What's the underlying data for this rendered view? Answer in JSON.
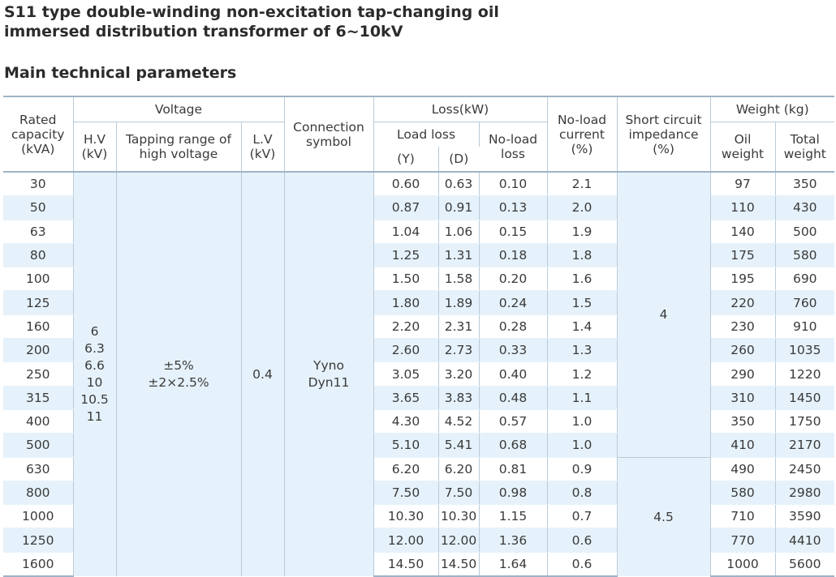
{
  "page": {
    "title_line1": "S11 type double-winding non-excitation tap-changing oil",
    "title_line2": "immersed distribution transformer of 6~10kV",
    "section": "Main technical parameters"
  },
  "headers": {
    "rated_capacity": [
      "Rated",
      "capacity",
      "(kVA)"
    ],
    "voltage": "Voltage",
    "hv": [
      "H.V",
      "(kV)"
    ],
    "tapping": [
      "Tapping range of",
      "high voltage"
    ],
    "lv": [
      "L.V",
      "(kV)"
    ],
    "connection": [
      "Connection",
      "symbol"
    ],
    "loss": "Loss(kW)",
    "load_loss": "Load loss",
    "load_loss_y": "(Y)",
    "load_loss_d": "(D)",
    "no_load_loss": [
      "No-load",
      "loss"
    ],
    "no_load_current": [
      "No-load",
      "current",
      "(%)"
    ],
    "short_circuit": [
      "Short circuit",
      "impedance",
      "(%)"
    ],
    "weight": "Weight (kg)",
    "oil_weight": [
      "Oil",
      "weight"
    ],
    "total_weight": [
      "Total",
      "weight"
    ]
  },
  "merged": {
    "hv_values": [
      "6",
      "6.3",
      "6.6",
      "10",
      "10.5",
      "11"
    ],
    "tapping_values": [
      "±5%",
      "±2×2.5%"
    ],
    "lv_value": "0.4",
    "connection_values": [
      "Yyno",
      "Dyn11"
    ],
    "impedance_a": "4",
    "impedance_b": "4.5"
  },
  "rows": [
    {
      "capacity": "30",
      "load_y": "0.60",
      "load_d": "0.63",
      "no_load_loss": "0.10",
      "no_load_current": "2.1",
      "oil": "97",
      "total": "350"
    },
    {
      "capacity": "50",
      "load_y": "0.87",
      "load_d": "0.91",
      "no_load_loss": "0.13",
      "no_load_current": "2.0",
      "oil": "110",
      "total": "430"
    },
    {
      "capacity": "63",
      "load_y": "1.04",
      "load_d": "1.06",
      "no_load_loss": "0.15",
      "no_load_current": "1.9",
      "oil": "140",
      "total": "500"
    },
    {
      "capacity": "80",
      "load_y": "1.25",
      "load_d": "1.31",
      "no_load_loss": "0.18",
      "no_load_current": "1.8",
      "oil": "175",
      "total": "580"
    },
    {
      "capacity": "100",
      "load_y": "1.50",
      "load_d": "1.58",
      "no_load_loss": "0.20",
      "no_load_current": "1.6",
      "oil": "195",
      "total": "690"
    },
    {
      "capacity": "125",
      "load_y": "1.80",
      "load_d": "1.89",
      "no_load_loss": "0.24",
      "no_load_current": "1.5",
      "oil": "220",
      "total": "760"
    },
    {
      "capacity": "160",
      "load_y": "2.20",
      "load_d": "2.31",
      "no_load_loss": "0.28",
      "no_load_current": "1.4",
      "oil": "230",
      "total": "910"
    },
    {
      "capacity": "200",
      "load_y": "2.60",
      "load_d": "2.73",
      "no_load_loss": "0.33",
      "no_load_current": "1.3",
      "oil": "260",
      "total": "1035"
    },
    {
      "capacity": "250",
      "load_y": "3.05",
      "load_d": "3.20",
      "no_load_loss": "0.40",
      "no_load_current": "1.2",
      "oil": "290",
      "total": "1220"
    },
    {
      "capacity": "315",
      "load_y": "3.65",
      "load_d": "3.83",
      "no_load_loss": "0.48",
      "no_load_current": "1.1",
      "oil": "310",
      "total": "1450"
    },
    {
      "capacity": "400",
      "load_y": "4.30",
      "load_d": "4.52",
      "no_load_loss": "0.57",
      "no_load_current": "1.0",
      "oil": "350",
      "total": "1750"
    },
    {
      "capacity": "500",
      "load_y": "5.10",
      "load_d": "5.41",
      "no_load_loss": "0.68",
      "no_load_current": "1.0",
      "oil": "410",
      "total": "2170"
    },
    {
      "capacity": "630",
      "load_y": "6.20",
      "load_d": "6.20",
      "no_load_loss": "0.81",
      "no_load_current": "0.9",
      "oil": "490",
      "total": "2450"
    },
    {
      "capacity": "800",
      "load_y": "7.50",
      "load_d": "7.50",
      "no_load_loss": "0.98",
      "no_load_current": "0.8",
      "oil": "580",
      "total": "2980"
    },
    {
      "capacity": "1000",
      "load_y": "10.30",
      "load_d": "10.30",
      "no_load_loss": "1.15",
      "no_load_current": "0.7",
      "oil": "710",
      "total": "3590"
    },
    {
      "capacity": "1250",
      "load_y": "12.00",
      "load_d": "12.00",
      "no_load_loss": "1.36",
      "no_load_current": "0.6",
      "oil": "770",
      "total": "4410"
    },
    {
      "capacity": "1600",
      "load_y": "14.50",
      "load_d": "14.50",
      "no_load_loss": "1.64",
      "no_load_current": "0.6",
      "oil": "1000",
      "total": "5600"
    }
  ],
  "colors": {
    "row_stripe": "#e6f2fb",
    "rule": "#9fb3c6",
    "cell_border": "#b9cbd9",
    "text": "#3a3a3a"
  }
}
